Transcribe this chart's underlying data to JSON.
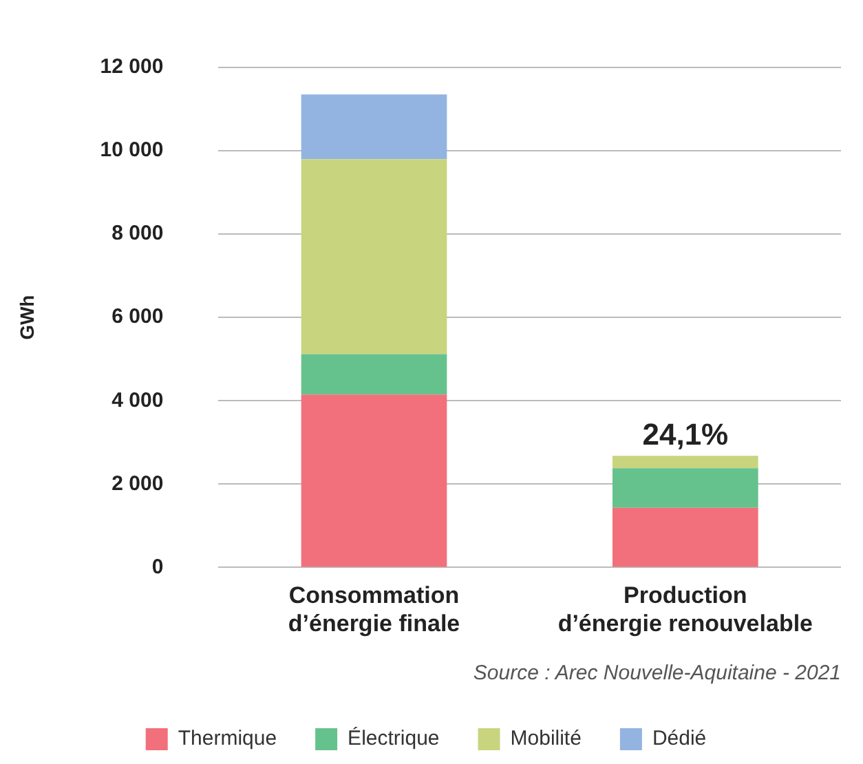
{
  "chart_data": {
    "type": "bar",
    "stacked": true,
    "ylabel": "GWh",
    "categories": [
      "Consommation d’énergie finale",
      "Production d’énergie renouvelable"
    ],
    "series": [
      {
        "name": "Thermique",
        "color": "#f2707c",
        "values": [
          4150,
          1430
        ]
      },
      {
        "name": "Électrique",
        "color": "#66c28c",
        "values": [
          970,
          950
        ]
      },
      {
        "name": "Mobilité",
        "color": "#c9d47f",
        "values": [
          4680,
          300
        ]
      },
      {
        "name": "Dédié",
        "color": "#93b4e0",
        "values": [
          1550,
          0
        ]
      }
    ],
    "ylim": [
      0,
      12000
    ],
    "yticks": [
      {
        "value": 0,
        "label": "0"
      },
      {
        "value": 2000,
        "label": "2 000"
      },
      {
        "value": 4000,
        "label": "4 000"
      },
      {
        "value": 6000,
        "label": "6 000"
      },
      {
        "value": 8000,
        "label": "8 000"
      },
      {
        "value": 10000,
        "label": "10 000"
      },
      {
        "value": 12000,
        "label": "12 000"
      }
    ],
    "grid": "y",
    "legend": "bottom",
    "annotations": [
      {
        "text": "24,1%",
        "x": "Production d’énergie renouvelable",
        "y": 2680
      },
      "Source : Arec Nouvelle-Aquitaine - 2021"
    ]
  }
}
